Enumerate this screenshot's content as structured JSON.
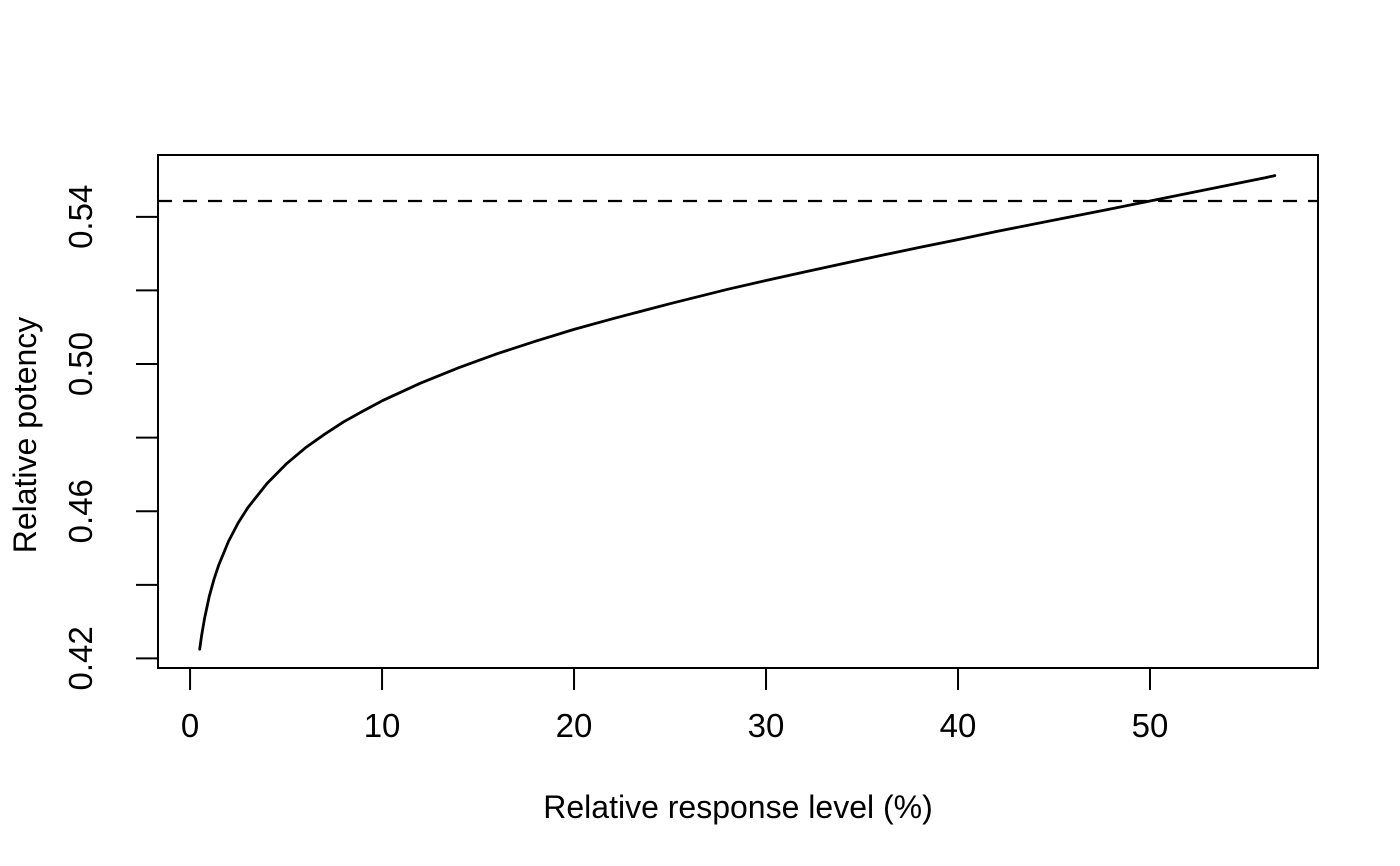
{
  "figure": {
    "background": "#ffffff",
    "foreground": "#000000"
  },
  "chart_data": {
    "type": "line",
    "title": "",
    "xlabel": "Relative response level (%)",
    "ylabel": "Relative potency",
    "xlim": [
      -1.67,
      58.75
    ],
    "ylim": [
      0.4174,
      0.5568
    ],
    "grid": false,
    "legend": null,
    "x_ticks": [
      0,
      10,
      20,
      30,
      40,
      50
    ],
    "x_tick_labels": [
      "0",
      "10",
      "20",
      "30",
      "40",
      "50"
    ],
    "y_ticks": [
      0.42,
      0.44,
      0.46,
      0.48,
      0.5,
      0.52,
      0.54
    ],
    "y_labeled_tick_values": [
      0.42,
      0.46,
      0.5,
      0.54
    ],
    "y_tick_labels": [
      "0.42",
      "0.46",
      "0.50",
      "0.54"
    ],
    "series": [
      {
        "name": "relative-potency-curve",
        "type": "line",
        "linestyle": "solid",
        "color": "#000000",
        "x": [
          0.5,
          0.6,
          0.75,
          1,
          1.25,
          1.5,
          2,
          2.5,
          3,
          4,
          5,
          6,
          7,
          8,
          9,
          10,
          12,
          14,
          16,
          18,
          20,
          22,
          25,
          28,
          30,
          32,
          35,
          38,
          40,
          42,
          45,
          48,
          50,
          52,
          54,
          56,
          56.5
        ],
        "y": [
          0.4225,
          0.4262,
          0.4308,
          0.4369,
          0.4416,
          0.4455,
          0.4518,
          0.4568,
          0.4609,
          0.4675,
          0.4728,
          0.4772,
          0.4809,
          0.4843,
          0.4872,
          0.49,
          0.4948,
          0.499,
          0.5028,
          0.5062,
          0.5094,
          0.5123,
          0.5164,
          0.5203,
          0.5227,
          0.525,
          0.5284,
          0.5317,
          0.5338,
          0.536,
          0.5391,
          0.5422,
          0.5443,
          0.5464,
          0.5485,
          0.5506,
          0.5512
        ]
      },
      {
        "name": "reference-line-relative-potency-at-50pct",
        "type": "hline",
        "linestyle": "dashed",
        "color": "#000000",
        "y": 0.5443
      }
    ]
  }
}
